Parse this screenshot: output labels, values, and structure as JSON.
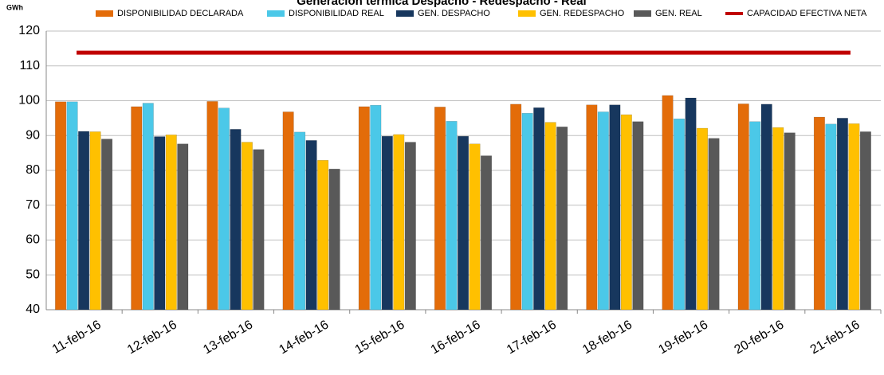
{
  "chart_data": {
    "type": "bar",
    "title": "Generación térmica Despacho - Redespacho - Real",
    "y_unit": "GWh",
    "categories": [
      "11-feb-16",
      "12-feb-16",
      "13-feb-16",
      "14-feb-16",
      "15-feb-16",
      "16-feb-16",
      "17-feb-16",
      "18-feb-16",
      "19-feb-16",
      "20-feb-16",
      "21-feb-16"
    ],
    "series": [
      {
        "name": "DISPONIBILIDAD DECLARADA",
        "color": "#e36c09",
        "values": [
          99.7,
          98.3,
          99.8,
          96.8,
          98.3,
          98.2,
          99.0,
          98.8,
          101.5,
          99.1,
          95.3
        ]
      },
      {
        "name": "DISPONIBILIDAD REAL",
        "color": "#4bc8e8",
        "values": [
          99.7,
          99.3,
          97.9,
          91.0,
          98.7,
          94.1,
          96.4,
          96.8,
          94.8,
          94.0,
          93.3
        ]
      },
      {
        "name": "GEN. DESPACHO",
        "color": "#17375e",
        "values": [
          91.2,
          89.7,
          91.8,
          88.6,
          89.8,
          89.8,
          98.0,
          98.8,
          100.8,
          99.0,
          95.0
        ]
      },
      {
        "name": "GEN. REDESPACHO",
        "color": "#ffc000",
        "values": [
          91.1,
          90.2,
          88.1,
          82.9,
          90.3,
          87.6,
          93.8,
          96.0,
          92.1,
          92.3,
          93.4
        ]
      },
      {
        "name": "GEN. REAL",
        "color": "#595959",
        "values": [
          89.0,
          87.6,
          86.0,
          80.4,
          88.1,
          84.2,
          92.5,
          94.0,
          89.2,
          90.8,
          91.1
        ]
      },
      {
        "name": "CAPACIDAD EFECTIVA NETA",
        "type": "line",
        "color": "#c00000",
        "values": [
          113.8,
          113.8,
          113.8,
          113.8,
          113.8,
          113.8,
          113.8,
          113.8,
          113.8,
          113.8,
          113.8
        ]
      }
    ],
    "ylim": [
      40,
      120
    ],
    "yticks": [
      40,
      50,
      60,
      70,
      80,
      90,
      100,
      110,
      120
    ],
    "grid": true
  }
}
